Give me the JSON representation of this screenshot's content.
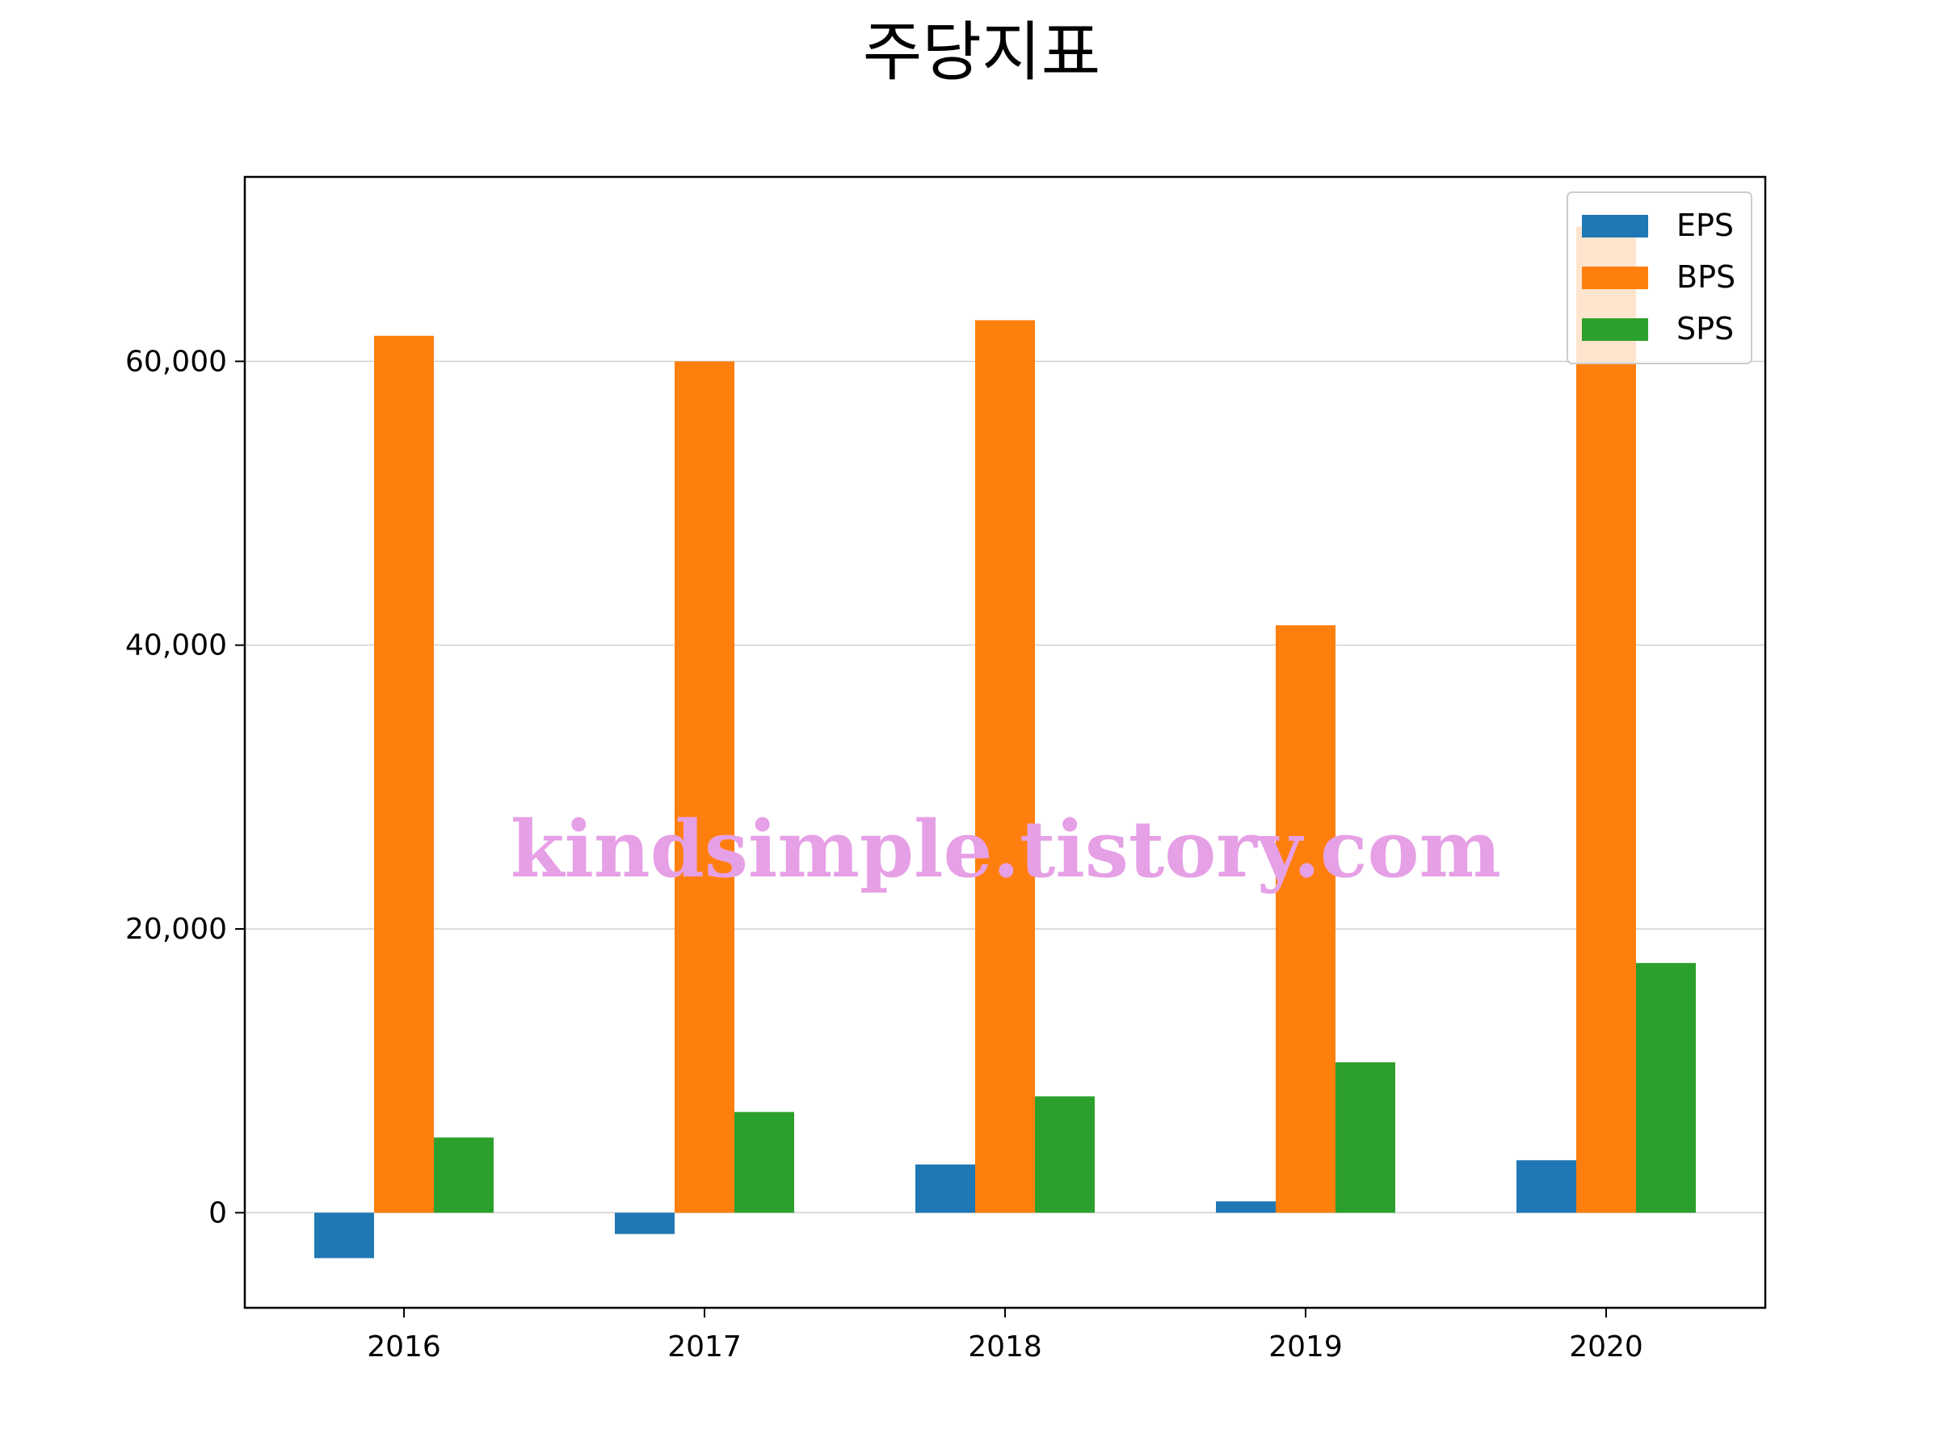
{
  "chart_data": {
    "type": "bar",
    "title": "주당지표",
    "categories": [
      "2016",
      "2017",
      "2018",
      "2019",
      "2020"
    ],
    "series": [
      {
        "name": "EPS",
        "color": "#1f77b4",
        "values": [
          -3200,
          -1500,
          3400,
          800,
          3700
        ]
      },
      {
        "name": "BPS",
        "color": "#ff7f0e",
        "values": [
          61800,
          60000,
          62900,
          41400,
          69500
        ]
      },
      {
        "name": "SPS",
        "color": "#2ca02c",
        "values": [
          5300,
          7100,
          8200,
          10600,
          17600
        ]
      }
    ],
    "ylim": [
      -6700,
      73000
    ],
    "yticks": [
      0,
      20000,
      40000,
      60000
    ],
    "ytick_labels": [
      "0",
      "20,000",
      "40,000",
      "60,000"
    ],
    "grid": "y",
    "legend_position": "top-right",
    "watermark": "kindsimple.tistory.com",
    "xlabel": "",
    "ylabel": ""
  }
}
